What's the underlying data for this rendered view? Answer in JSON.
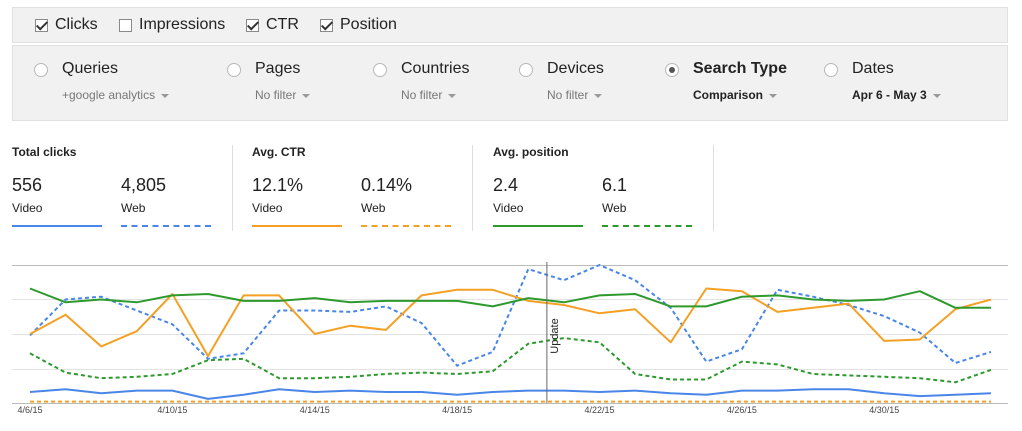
{
  "metric_toggles": [
    {
      "label": "Clicks",
      "checked": true
    },
    {
      "label": "Impressions",
      "checked": false
    },
    {
      "label": "CTR",
      "checked": true
    },
    {
      "label": "Position",
      "checked": true
    }
  ],
  "filters": [
    {
      "title": "Queries",
      "value": "+google analytics",
      "selected": false,
      "value_bold": true
    },
    {
      "title": "Pages",
      "value": "No filter",
      "selected": false,
      "value_bold": false
    },
    {
      "title": "Countries",
      "value": "No filter",
      "selected": false,
      "value_bold": false
    },
    {
      "title": "Devices",
      "value": "No filter",
      "selected": false,
      "value_bold": false
    },
    {
      "title": "Search Type",
      "value": "Comparison",
      "selected": true,
      "value_bold": true
    },
    {
      "title": "Dates",
      "value": "Apr 6 - May 3",
      "selected": false,
      "value_bold": true
    }
  ],
  "stats": {
    "clicks": {
      "title": "Total clicks",
      "video_value": "556",
      "video_label": "Video",
      "web_value": "4,805",
      "web_label": "Web"
    },
    "ctr": {
      "title": "Avg. CTR",
      "video_value": "12.1%",
      "video_label": "Video",
      "web_value": "0.14%",
      "web_label": "Web"
    },
    "position": {
      "title": "Avg. position",
      "video_value": "2.4",
      "video_label": "Video",
      "web_value": "6.1",
      "web_label": "Web"
    }
  },
  "colors": {
    "clicks": "#4a86e8",
    "ctr": "#f4a025",
    "position": "#2e9a2e"
  },
  "chart_data": {
    "type": "line",
    "x": [
      "4/6/15",
      "4/7/15",
      "4/8/15",
      "4/9/15",
      "4/10/15",
      "4/11/15",
      "4/12/15",
      "4/13/15",
      "4/14/15",
      "4/15/15",
      "4/16/15",
      "4/17/15",
      "4/18/15",
      "4/19/15",
      "4/20/15",
      "4/21/15",
      "4/22/15",
      "4/23/15",
      "4/24/15",
      "4/25/15",
      "4/26/15",
      "4/27/15",
      "4/28/15",
      "4/29/15",
      "4/30/15",
      "5/1/15",
      "5/2/15",
      "5/3/15"
    ],
    "tick_labels": [
      "4/6/15",
      "4/10/15",
      "4/14/15",
      "4/18/15",
      "4/22/15",
      "4/26/15",
      "4/30/15"
    ],
    "annotation": {
      "label": "Update",
      "x": "4/21/15"
    },
    "y_scale": "hidden, normalized 0-1 (top of plot = 1)",
    "series": [
      {
        "metric": "clicks",
        "device": "Video",
        "style": "solid",
        "values": [
          0.08,
          0.1,
          0.07,
          0.09,
          0.09,
          0.03,
          0.06,
          0.1,
          0.08,
          0.09,
          0.08,
          0.08,
          0.06,
          0.08,
          0.09,
          0.09,
          0.08,
          0.09,
          0.07,
          0.06,
          0.09,
          0.09,
          0.1,
          0.1,
          0.07,
          0.05,
          0.06,
          0.07
        ]
      },
      {
        "metric": "clicks",
        "device": "Web",
        "style": "dashed",
        "values": [
          0.49,
          0.75,
          0.77,
          0.67,
          0.57,
          0.32,
          0.36,
          0.67,
          0.67,
          0.66,
          0.7,
          0.58,
          0.27,
          0.37,
          0.97,
          0.89,
          1.0,
          0.89,
          0.69,
          0.3,
          0.39,
          0.82,
          0.77,
          0.71,
          0.63,
          0.51,
          0.29,
          0.37
        ]
      },
      {
        "metric": "ctr",
        "device": "Video",
        "style": "solid",
        "values": [
          0.5,
          0.64,
          0.41,
          0.52,
          0.79,
          0.34,
          0.78,
          0.78,
          0.5,
          0.56,
          0.53,
          0.78,
          0.82,
          0.82,
          0.74,
          0.71,
          0.65,
          0.68,
          0.44,
          0.83,
          0.81,
          0.66,
          0.69,
          0.72,
          0.45,
          0.46,
          0.68,
          0.75
        ]
      },
      {
        "metric": "ctr",
        "device": "Web",
        "style": "dashed",
        "values": [
          0.01,
          0.01,
          0.01,
          0.01,
          0.01,
          0.01,
          0.01,
          0.01,
          0.01,
          0.01,
          0.01,
          0.01,
          0.01,
          0.01,
          0.01,
          0.01,
          0.01,
          0.01,
          0.01,
          0.01,
          0.01,
          0.01,
          0.01,
          0.01,
          0.01,
          0.01,
          0.01,
          0.01
        ]
      },
      {
        "metric": "position",
        "device": "Video",
        "style": "solid",
        "values": [
          0.83,
          0.73,
          0.75,
          0.73,
          0.78,
          0.79,
          0.74,
          0.74,
          0.76,
          0.73,
          0.74,
          0.74,
          0.74,
          0.7,
          0.76,
          0.73,
          0.78,
          0.79,
          0.7,
          0.7,
          0.77,
          0.78,
          0.75,
          0.74,
          0.75,
          0.81,
          0.69,
          0.69
        ]
      },
      {
        "metric": "position",
        "device": "Web",
        "style": "dashed",
        "values": [
          0.36,
          0.22,
          0.18,
          0.19,
          0.21,
          0.31,
          0.32,
          0.18,
          0.18,
          0.19,
          0.21,
          0.22,
          0.21,
          0.23,
          0.43,
          0.47,
          0.44,
          0.21,
          0.17,
          0.17,
          0.3,
          0.28,
          0.21,
          0.2,
          0.19,
          0.18,
          0.15,
          0.24
        ]
      }
    ]
  }
}
